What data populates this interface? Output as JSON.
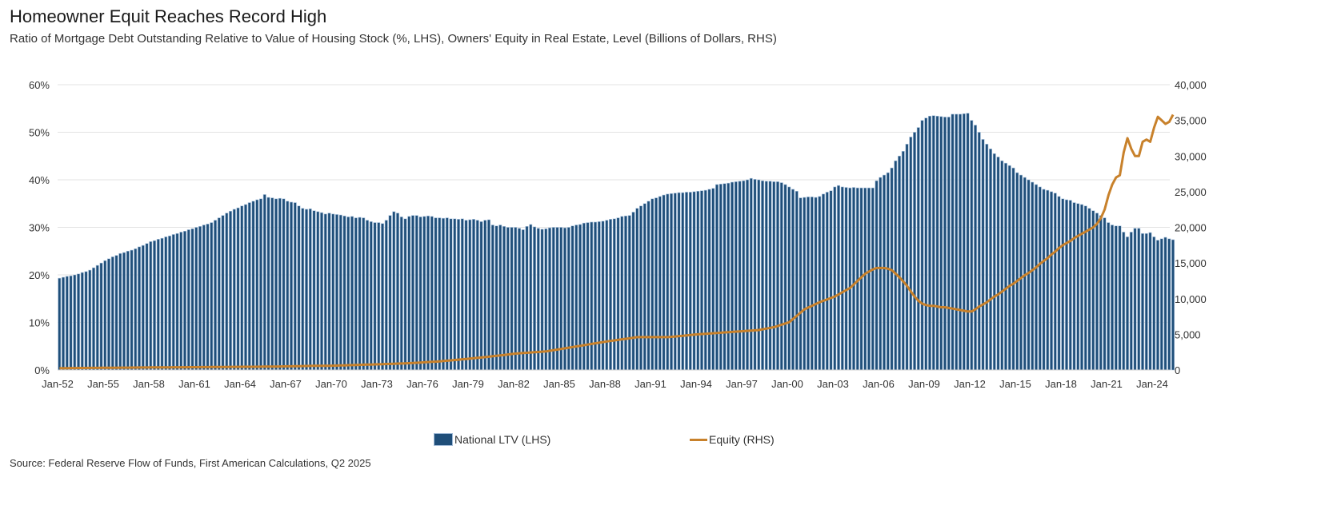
{
  "chart_data": {
    "type": "bar+line",
    "title": "Homeowner Equit Reaches Record High",
    "subtitle": "Ratio of Mortgage Debt Outstanding Relative to Value of Housing Stock (%, LHS), Owners' Equity in Real Estate, Level (Billions of Dollars, RHS)",
    "source": "Source: Federal Reserve Flow of Funds, First American Calculations, Q2 2025",
    "frequency": "quarterly",
    "left_axis": {
      "ylim": [
        0,
        60
      ],
      "ticks": [
        "0%",
        "10%",
        "20%",
        "30%",
        "40%",
        "50%",
        "60%"
      ]
    },
    "right_axis": {
      "ylim": [
        0,
        40000
      ],
      "ticks": [
        "0",
        "5,000",
        "10,000",
        "15,000",
        "20,000",
        "25,000",
        "30,000",
        "35,000",
        "40,000"
      ]
    },
    "x_ticks": [
      "Jan-52",
      "Jan-55",
      "Jan-58",
      "Jan-61",
      "Jan-64",
      "Jan-67",
      "Jan-70",
      "Jan-73",
      "Jan-76",
      "Jan-79",
      "Jan-82",
      "Jan-85",
      "Jan-88",
      "Jan-91",
      "Jan-94",
      "Jan-97",
      "Jan-00",
      "Jan-03",
      "Jan-06",
      "Jan-09",
      "Jan-12",
      "Jan-15",
      "Jan-18",
      "Jan-21",
      "Jan-24"
    ],
    "grid": true,
    "legend_position": "bottom",
    "colors": {
      "ltv": "#1f4e79",
      "equity": "#c8812b"
    },
    "series": [
      {
        "name": "National LTV (LHS)",
        "type": "bar",
        "axis": "left",
        "values_by_year": {
          "1952": [
            19.3,
            19.5,
            19.7,
            19.8
          ],
          "1953": [
            20.0,
            20.2,
            20.5,
            20.7
          ],
          "1954": [
            21.0,
            21.5,
            22.0,
            22.5
          ],
          "1955": [
            23.0,
            23.4,
            23.8,
            24.1
          ],
          "1956": [
            24.5,
            24.7,
            25.0,
            25.2
          ],
          "1957": [
            25.5,
            25.9,
            26.2,
            26.6
          ],
          "1958": [
            27.0,
            27.2,
            27.5,
            27.7
          ],
          "1959": [
            28.0,
            28.2,
            28.5,
            28.7
          ],
          "1960": [
            29.0,
            29.2,
            29.5,
            29.7
          ],
          "1961": [
            30.0,
            30.2,
            30.5,
            30.7
          ],
          "1962": [
            31.0,
            31.5,
            32.0,
            32.5
          ],
          "1963": [
            33.0,
            33.4,
            33.8,
            34.1
          ],
          "1964": [
            34.5,
            34.8,
            35.2,
            35.5
          ],
          "1965": [
            35.8,
            36.0,
            36.9,
            36.3
          ],
          "1966": [
            36.2,
            36.0,
            36.1,
            36.0
          ],
          "1967": [
            35.5,
            35.3,
            35.2,
            34.5
          ],
          "1968": [
            34.0,
            33.8,
            33.9,
            33.5
          ],
          "1969": [
            33.3,
            33.1,
            32.8,
            33.0
          ],
          "1970": [
            32.8,
            32.7,
            32.6,
            32.4
          ],
          "1971": [
            32.2,
            32.3,
            32.0,
            32.1
          ],
          "1972": [
            32.0,
            31.5,
            31.2,
            31.0
          ],
          "1973": [
            31.0,
            30.8,
            31.5,
            32.5
          ],
          "1974": [
            33.3,
            33.0,
            32.2,
            31.8
          ],
          "1975": [
            32.3,
            32.5,
            32.5,
            32.2
          ],
          "1976": [
            32.3,
            32.4,
            32.3,
            32.0
          ],
          "1977": [
            32.0,
            31.9,
            32.0,
            31.8
          ],
          "1978": [
            31.8,
            31.7,
            31.8,
            31.5
          ],
          "1979": [
            31.6,
            31.7,
            31.5,
            31.2
          ],
          "1980": [
            31.5,
            31.6,
            30.5,
            30.3
          ],
          "1981": [
            30.5,
            30.2,
            30.0,
            30.0
          ],
          "1982": [
            30.0,
            29.8,
            29.5,
            30.2
          ],
          "1983": [
            30.6,
            30.1,
            29.8,
            29.6
          ],
          "1984": [
            29.7,
            29.9,
            30.0,
            30.0
          ],
          "1985": [
            30.0,
            29.9,
            30.0,
            30.3
          ],
          "1986": [
            30.5,
            30.6,
            30.9,
            31.0
          ],
          "1987": [
            31.1,
            31.1,
            31.2,
            31.3
          ],
          "1988": [
            31.5,
            31.7,
            31.8,
            32.0
          ],
          "1989": [
            32.3,
            32.4,
            32.5,
            33.2
          ],
          "1990": [
            34.0,
            34.5,
            35.0,
            35.5
          ],
          "1991": [
            36.0,
            36.2,
            36.5,
            36.8
          ],
          "1992": [
            37.0,
            37.1,
            37.2,
            37.3
          ],
          "1993": [
            37.3,
            37.4,
            37.4,
            37.5
          ],
          "1994": [
            37.6,
            37.7,
            37.8,
            38.0
          ],
          "1995": [
            38.2,
            39.0,
            39.1,
            39.2
          ],
          "1996": [
            39.3,
            39.5,
            39.6,
            39.7
          ],
          "1997": [
            39.8,
            40.0,
            40.3,
            40.1
          ],
          "1998": [
            40.0,
            39.8,
            39.7,
            39.7
          ],
          "1999": [
            39.6,
            39.6,
            39.4,
            39.0
          ],
          "2000": [
            38.5,
            38.0,
            37.6,
            36.2
          ],
          "2001": [
            36.3,
            36.4,
            36.4,
            36.3
          ],
          "2002": [
            36.5,
            37.0,
            37.4,
            37.7
          ],
          "2003": [
            38.5,
            38.8,
            38.5,
            38.4
          ],
          "2004": [
            38.3,
            38.4,
            38.3,
            38.3
          ],
          "2005": [
            38.3,
            38.3,
            38.3,
            39.8
          ],
          "2006": [
            40.5,
            41.0,
            41.5,
            42.5
          ],
          "2007": [
            44.0,
            45.0,
            46.0,
            47.5
          ],
          "2008": [
            49.0,
            50.0,
            51.0,
            52.5
          ],
          "2009": [
            53.0,
            53.4,
            53.5,
            53.4
          ],
          "2010": [
            53.3,
            53.2,
            53.2,
            53.8
          ],
          "2011": [
            53.8,
            53.8,
            53.9,
            54.0
          ],
          "2012": [
            52.5,
            51.5,
            50.0,
            48.5
          ],
          "2013": [
            47.5,
            46.5,
            45.5,
            44.8
          ],
          "2014": [
            44.0,
            43.5,
            43.0,
            42.5
          ],
          "2015": [
            41.5,
            41.0,
            40.5,
            40.0
          ],
          "2016": [
            39.5,
            39.0,
            38.5,
            38.0
          ],
          "2017": [
            37.8,
            37.5,
            37.2,
            36.5
          ],
          "2018": [
            36.0,
            35.8,
            35.7,
            35.2
          ],
          "2019": [
            35.0,
            34.8,
            34.5,
            34.0
          ],
          "2020": [
            33.5,
            33.0,
            32.5,
            32.0
          ],
          "2021": [
            31.0,
            30.5,
            30.3,
            30.3
          ],
          "2022": [
            29.0,
            28.0,
            29.0,
            29.8
          ],
          "2023": [
            29.8,
            28.7,
            28.7,
            28.9
          ],
          "2024": [
            28.0,
            27.3,
            27.6,
            27.9
          ],
          "2025": [
            27.6,
            27.4
          ]
        }
      },
      {
        "name": "Equity (RHS)",
        "type": "line",
        "axis": "right",
        "values_by_year": {
          "1952": [
            250,
            255,
            260,
            265
          ],
          "1953": [
            270,
            275,
            280,
            285
          ],
          "1954": [
            288,
            292,
            295,
            298
          ],
          "1955": [
            300,
            305,
            310,
            315
          ],
          "1956": [
            320,
            325,
            330,
            335
          ],
          "1957": [
            340,
            344,
            348,
            352
          ],
          "1958": [
            356,
            360,
            364,
            368
          ],
          "1959": [
            372,
            375,
            377,
            379
          ],
          "1960": [
            380,
            384,
            388,
            392
          ],
          "1961": [
            396,
            400,
            404,
            408
          ],
          "1962": [
            412,
            416,
            420,
            424
          ],
          "1963": [
            428,
            432,
            436,
            440
          ],
          "1964": [
            443,
            446,
            448,
            449
          ],
          "1965": [
            450,
            457,
            465,
            472
          ],
          "1966": [
            480,
            487,
            495,
            502
          ],
          "1967": [
            510,
            520,
            530,
            540
          ],
          "1968": [
            550,
            560,
            570,
            580
          ],
          "1969": [
            585,
            590,
            595,
            598
          ],
          "1970": [
            600,
            617,
            634,
            650
          ],
          "1971": [
            667,
            684,
            700,
            717
          ],
          "1972": [
            734,
            750,
            767,
            784
          ],
          "1973": [
            800,
            819,
            838,
            856
          ],
          "1974": [
            875,
            894,
            912,
            931
          ],
          "1975": [
            950,
            981,
            1012,
            1044
          ],
          "1976": [
            1075,
            1106,
            1138,
            1169
          ],
          "1977": [
            1200,
            1250,
            1300,
            1350
          ],
          "1978": [
            1400,
            1450,
            1500,
            1550
          ],
          "1979": [
            1600,
            1650,
            1700,
            1750
          ],
          "1980": [
            1800,
            1862,
            1925,
            1988
          ],
          "1981": [
            2050,
            2112,
            2175,
            2238
          ],
          "1982": [
            2300,
            2338,
            2375,
            2412
          ],
          "1983": [
            2450,
            2488,
            2525,
            2562
          ],
          "1984": [
            2600,
            2688,
            2775,
            2862
          ],
          "1985": [
            2950,
            3038,
            3125,
            3212
          ],
          "1986": [
            3300,
            3388,
            3475,
            3562
          ],
          "1987": [
            3650,
            3738,
            3825,
            3912
          ],
          "1988": [
            4000,
            4075,
            4150,
            4225
          ],
          "1989": [
            4300,
            4375,
            4450,
            4525
          ],
          "1990": [
            4600,
            4600,
            4600,
            4600
          ],
          "1991": [
            4600,
            4600,
            4600,
            4600
          ],
          "1992": [
            4600,
            4650,
            4700,
            4750
          ],
          "1993": [
            4800,
            4850,
            4900,
            4950
          ],
          "1994": [
            5000,
            5038,
            5075,
            5112
          ],
          "1995": [
            5150,
            5188,
            5225,
            5262
          ],
          "1996": [
            5300,
            5338,
            5375,
            5412
          ],
          "1997": [
            5450,
            5488,
            5525,
            5562
          ],
          "1998": [
            5600,
            5700,
            5800,
            5900
          ],
          "1999": [
            6000,
            6175,
            6350,
            6525
          ],
          "2000": [
            6700,
            7150,
            7600,
            8050
          ],
          "2001": [
            8500,
            8750,
            9000,
            9250
          ],
          "2002": [
            9500,
            9700,
            9900,
            10100
          ],
          "2003": [
            10300,
            10600,
            10900,
            11200
          ],
          "2004": [
            11500,
            12000,
            12500,
            13000
          ],
          "2005": [
            13500,
            13800,
            14100,
            14300
          ],
          "2006": [
            14300,
            14300,
            14200,
            14000
          ],
          "2007": [
            13500,
            13000,
            12400,
            11800
          ],
          "2008": [
            11000,
            10300,
            9700,
            9300
          ],
          "2009": [
            9100,
            9000,
            9000,
            8900
          ],
          "2010": [
            8800,
            8800,
            8700,
            8600
          ],
          "2011": [
            8500,
            8400,
            8300,
            8200
          ],
          "2012": [
            8200,
            8500,
            8900,
            9200
          ],
          "2013": [
            9500,
            9900,
            10300,
            10600
          ],
          "2014": [
            11000,
            11400,
            11800,
            12100
          ],
          "2015": [
            12500,
            12900,
            13300,
            13600
          ],
          "2016": [
            14000,
            14400,
            14900,
            15300
          ],
          "2017": [
            15700,
            16200,
            16600,
            17100
          ],
          "2018": [
            17500,
            17800,
            18100,
            18500
          ],
          "2019": [
            18800,
            19100,
            19400,
            19700
          ],
          "2020": [
            20000,
            20500,
            21300,
            22500
          ],
          "2021": [
            24500,
            26000,
            27000,
            27300
          ],
          "2022": [
            30500,
            32500,
            31000,
            30000
          ],
          "2023": [
            30000,
            32000,
            32300,
            32000
          ],
          "2024": [
            34000,
            35500,
            35000,
            34500
          ],
          "2025": [
            34800,
            35800
          ]
        }
      }
    ]
  }
}
